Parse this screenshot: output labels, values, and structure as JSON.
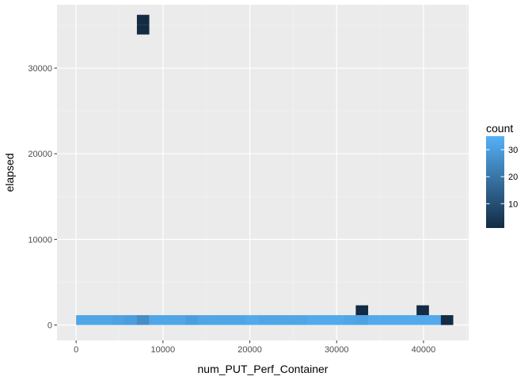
{
  "chart_data": {
    "type": "heatmap",
    "title": "",
    "xlabel": "num_PUT_Perf_Container",
    "ylabel": "elapsed",
    "xlim": [
      -2200,
      45200
    ],
    "ylim": [
      -1800,
      37400
    ],
    "x_ticks": [
      0,
      10000,
      20000,
      30000,
      40000
    ],
    "x_tick_labels": [
      "0",
      "10000",
      "20000",
      "30000",
      "40000"
    ],
    "y_ticks": [
      0,
      10000,
      20000,
      30000
    ],
    "y_tick_labels": [
      "0",
      "10000",
      "20000",
      "30000"
    ],
    "grid": true,
    "bin_width": 1400,
    "bin_height": 1150,
    "legend": {
      "title": "count",
      "position": "right",
      "tick_values": [
        10,
        20,
        30
      ],
      "tick_labels": [
        "10",
        "20",
        "30"
      ],
      "min": 1,
      "max": 35,
      "low_color": "#132b43",
      "high_color": "#56b1f7"
    },
    "cells": [
      {
        "x": 700,
        "y": 575,
        "count": 32
      },
      {
        "x": 2100,
        "y": 575,
        "count": 32
      },
      {
        "x": 3500,
        "y": 575,
        "count": 32
      },
      {
        "x": 4900,
        "y": 575,
        "count": 31
      },
      {
        "x": 6300,
        "y": 575,
        "count": 30
      },
      {
        "x": 7700,
        "y": 575,
        "count": 26
      },
      {
        "x": 9100,
        "y": 575,
        "count": 32
      },
      {
        "x": 10500,
        "y": 575,
        "count": 32
      },
      {
        "x": 11900,
        "y": 575,
        "count": 32
      },
      {
        "x": 13300,
        "y": 575,
        "count": 30
      },
      {
        "x": 14700,
        "y": 575,
        "count": 32
      },
      {
        "x": 16100,
        "y": 575,
        "count": 32
      },
      {
        "x": 17500,
        "y": 575,
        "count": 32
      },
      {
        "x": 18900,
        "y": 575,
        "count": 32
      },
      {
        "x": 20300,
        "y": 575,
        "count": 33
      },
      {
        "x": 21700,
        "y": 575,
        "count": 32
      },
      {
        "x": 23100,
        "y": 575,
        "count": 32
      },
      {
        "x": 24500,
        "y": 575,
        "count": 32
      },
      {
        "x": 25900,
        "y": 575,
        "count": 32
      },
      {
        "x": 27300,
        "y": 575,
        "count": 33
      },
      {
        "x": 28700,
        "y": 575,
        "count": 33
      },
      {
        "x": 30100,
        "y": 575,
        "count": 33
      },
      {
        "x": 31500,
        "y": 575,
        "count": 32
      },
      {
        "x": 32900,
        "y": 575,
        "count": 31
      },
      {
        "x": 34300,
        "y": 575,
        "count": 33
      },
      {
        "x": 35700,
        "y": 575,
        "count": 33
      },
      {
        "x": 37100,
        "y": 575,
        "count": 33
      },
      {
        "x": 38500,
        "y": 575,
        "count": 33
      },
      {
        "x": 39900,
        "y": 575,
        "count": 33
      },
      {
        "x": 41300,
        "y": 575,
        "count": 33
      },
      {
        "x": 42700,
        "y": 575,
        "count": 1
      },
      {
        "x": 32900,
        "y": 1725,
        "count": 1
      },
      {
        "x": 39900,
        "y": 1725,
        "count": 1
      },
      {
        "x": 7700,
        "y": 34500,
        "count": 1
      },
      {
        "x": 7700,
        "y": 35650,
        "count": 1
      }
    ]
  }
}
